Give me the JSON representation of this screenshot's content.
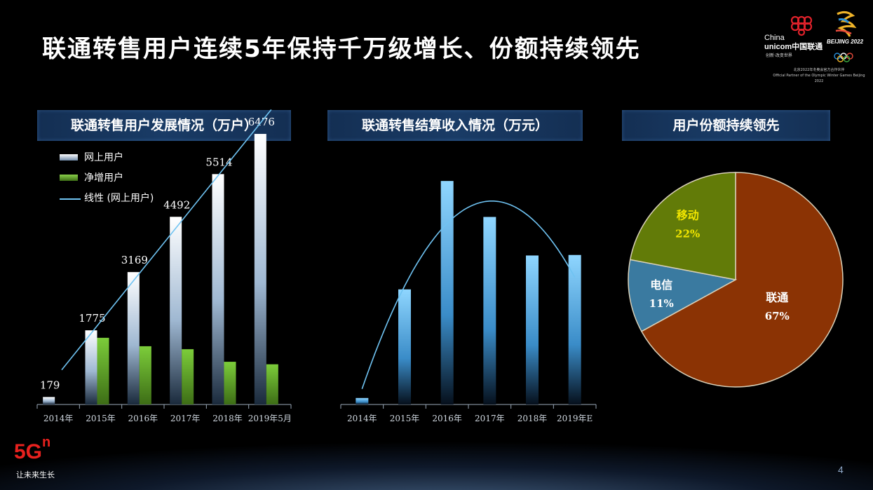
{
  "slide": {
    "title": "联通转售用户连续5年保持千万级增长、份额持续领先",
    "page_number": "4",
    "logo": {
      "cu_line1": "China",
      "cu_line2": "unicom中国联通",
      "cu_slogan": "创新·改变世界",
      "bj_text": "BEIJING 2022",
      "partner_cn": "北京2022年冬奥会官方合作伙伴",
      "partner_en": "Official Partner of the Olympic Winter Games Beijing 2022"
    },
    "footer": {
      "brand": "5G",
      "brand_sup": "n",
      "slogan": "让未来生长"
    }
  },
  "panels": {
    "users_title": "联通转售用户发展情况（万户）",
    "revenue_title": "联通转售结算收入情况（万元）",
    "share_title": "用户份额持续领先"
  },
  "legend": {
    "online": "网上用户",
    "net_add": "净增用户",
    "trend": "线性 (网上用户)"
  },
  "colors": {
    "accent_blue": "#6fc3f2",
    "green": "#6cae2c",
    "unicom_share": "#8b3304",
    "mobile_share": "#627b08",
    "telecom_share": "#3a7aa0"
  },
  "chart_data": [
    {
      "type": "bar",
      "title": "联通转售用户发展情况（万户）",
      "categories": [
        "2014年",
        "2015年",
        "2016年",
        "2017年",
        "2018年",
        "2019年5月"
      ],
      "series": [
        {
          "name": "网上用户",
          "values": [
            179,
            1775,
            3169,
            4492,
            5514,
            6476
          ],
          "labels": [
            "179",
            "1775",
            "3169",
            "4492",
            "5514",
            "6476"
          ]
        },
        {
          "name": "净增用户",
          "values": [
            179,
            1596,
            1394,
            1323,
            1022,
            962
          ]
        }
      ],
      "trendline": "线性 (网上用户)",
      "ylim": [
        0,
        7500
      ]
    },
    {
      "type": "bar",
      "title": "联通转售结算收入情况（万元）",
      "categories": [
        "2014年",
        "2015年",
        "2016年",
        "2017年",
        "2018年",
        "2019年E"
      ],
      "values": [
        2.5,
        44.5,
        86.4,
        72.5,
        57.6,
        57.8
      ],
      "trendline": "polynomial",
      "ylim": [
        0,
        100
      ]
    },
    {
      "type": "pie",
      "title": "用户份额持续领先",
      "slices": [
        {
          "label": "联通",
          "value": 67,
          "pct": "67%"
        },
        {
          "label": "电信",
          "value": 11,
          "pct": "11%"
        },
        {
          "label": "移动",
          "value": 22,
          "pct": "22%"
        }
      ]
    }
  ]
}
